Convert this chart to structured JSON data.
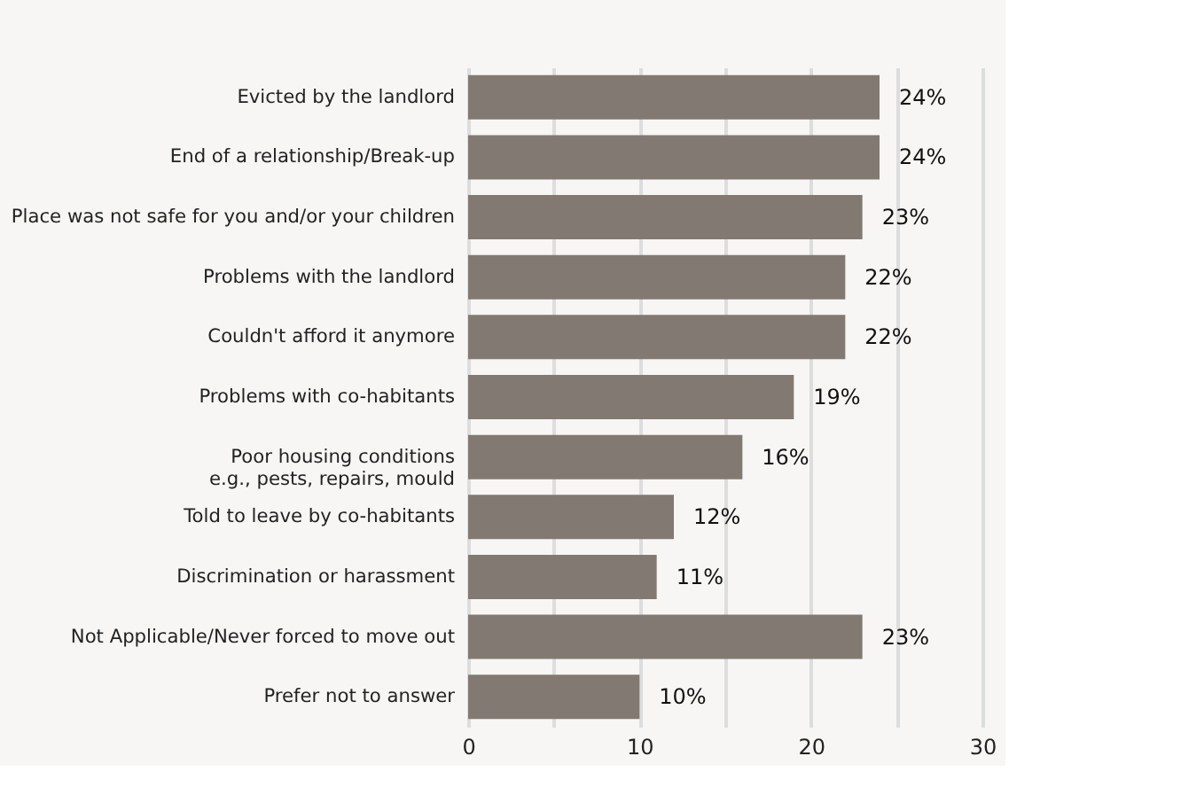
{
  "chart_data": {
    "type": "bar",
    "orientation": "horizontal",
    "categories": [
      "Evicted by the landlord",
      "End of a relationship/Break-up",
      "Place was not safe for you and/or your children",
      "Problems with the landlord",
      "Couldn't afford it anymore",
      "Problems with co-habitants",
      "Poor housing conditions\ne.g., pests, repairs, mould",
      "Told to leave by co-habitants",
      "Discrimination or harassment",
      "Not Applicable/Never forced to move out",
      "Prefer not to answer"
    ],
    "values": [
      24,
      24,
      23,
      22,
      22,
      19,
      16,
      12,
      11,
      23,
      10
    ],
    "value_labels": [
      "24%",
      "24%",
      "23%",
      "22%",
      "22%",
      "19%",
      "16%",
      "12%",
      "11%",
      "23%",
      "10%"
    ],
    "color": "#827a72",
    "xlim": [
      0,
      30
    ],
    "xticks": [
      0,
      {
        "value": 5,
        "label": null
      },
      10,
      {
        "value": 15,
        "label": null
      },
      20,
      {
        "value": 25,
        "label": null
      },
      30
    ],
    "grid": "x"
  }
}
